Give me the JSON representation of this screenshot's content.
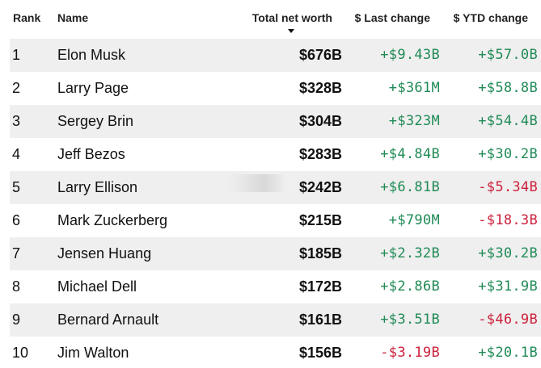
{
  "header": {
    "rank": "Rank",
    "name": "Name",
    "total_net_worth": "Total net worth",
    "last_change": "$ Last change",
    "ytd_change": "$ YTD change",
    "sort_icon": "sort-descending-arrow-icon"
  },
  "colors": {
    "positive": "#1f8a55",
    "negative": "#cc1f3a",
    "row_shade": "#efefef"
  },
  "rows": [
    {
      "rank": "1",
      "name": "Elon Musk",
      "worth": "$676B",
      "last": "+$9.43B",
      "ytd": "+$57.0B"
    },
    {
      "rank": "2",
      "name": "Larry Page",
      "worth": "$328B",
      "last": "+$361M",
      "ytd": "+$58.8B"
    },
    {
      "rank": "3",
      "name": "Sergey Brin",
      "worth": "$304B",
      "last": "+$323M",
      "ytd": "+$54.4B"
    },
    {
      "rank": "4",
      "name": "Jeff Bezos",
      "worth": "$283B",
      "last": "+$4.84B",
      "ytd": "+$30.2B"
    },
    {
      "rank": "5",
      "name": "Larry Ellison",
      "worth": "$242B",
      "last": "+$6.81B",
      "ytd": "-$5.34B"
    },
    {
      "rank": "6",
      "name": "Mark Zuckerberg",
      "worth": "$215B",
      "last": "+$790M",
      "ytd": "-$18.3B"
    },
    {
      "rank": "7",
      "name": "Jensen Huang",
      "worth": "$185B",
      "last": "+$2.32B",
      "ytd": "+$30.2B"
    },
    {
      "rank": "8",
      "name": "Michael Dell",
      "worth": "$172B",
      "last": "+$2.86B",
      "ytd": "+$31.9B"
    },
    {
      "rank": "9",
      "name": "Bernard Arnault",
      "worth": "$161B",
      "last": "+$3.51B",
      "ytd": "-$46.9B"
    },
    {
      "rank": "10",
      "name": "Jim Walton",
      "worth": "$156B",
      "last": "-$3.19B",
      "ytd": "+$20.1B"
    }
  ]
}
